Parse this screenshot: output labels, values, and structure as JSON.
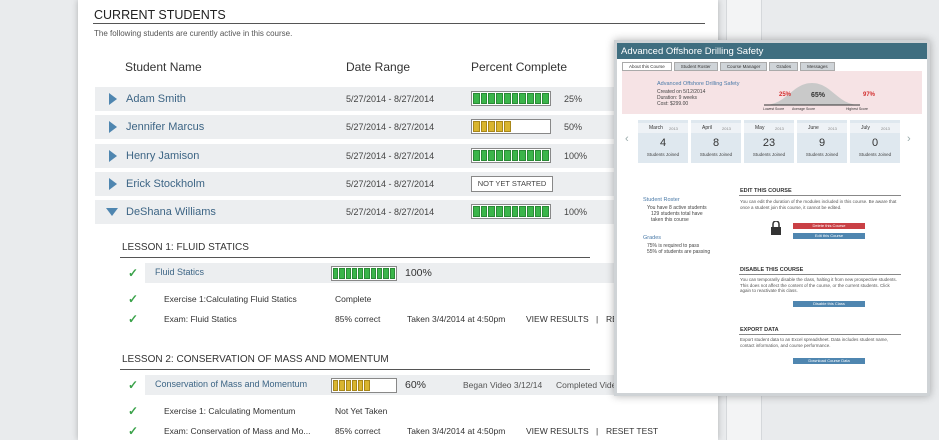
{
  "main": {
    "title": "CURRENT STUDENTS",
    "subtitle": "The following students are curently active in this course.",
    "columns": [
      "Student Name",
      "Date Range",
      "Percent Complete"
    ],
    "students": [
      {
        "name": "Adam Smith",
        "dates": "5/27/2014 - 8/27/2014",
        "progress": "25%"
      },
      {
        "name": "Jennifer Marcus",
        "dates": "5/27/2014 - 8/27/2014",
        "progress": "50%"
      },
      {
        "name": "Henry Jamison",
        "dates": "5/27/2014 - 8/27/2014",
        "progress": "100%"
      },
      {
        "name": "Erick Stockholm",
        "dates": "5/27/2014 - 8/27/2014",
        "progress": "NOT YET STARTED"
      },
      {
        "name": "DeShana Williams",
        "dates": "5/27/2014 - 8/27/2014",
        "progress": "100%"
      }
    ],
    "lessons": [
      {
        "title": "LESSON 1: FLUID STATICS",
        "module": "Fluid Statics",
        "progress": "100%",
        "status": [],
        "items": [
          [
            "Exercise 1:Calculating Fluid Statics",
            "Complete"
          ],
          [
            "Exam: Fluid Statics",
            "85% correct",
            "Taken 3/4/2014 at 4:50pm",
            "VIEW RESULTS",
            "|",
            "RESET TEST"
          ]
        ]
      },
      {
        "title": "LESSON 2: CONSERVATION OF MASS AND MOMENTUM",
        "module": "Conservation of Mass and Momentum",
        "progress": "60%",
        "status": [
          "Began Video 3/12/14",
          "Completed Video"
        ],
        "items": [
          [
            "Exercise 1: Calculating Momentum",
            "Not Yet Taken"
          ],
          [
            "Exam: Conservation of Mass and Mo...",
            "85% correct",
            "Taken 3/4/2014 at 4:50pm",
            "VIEW RESULTS",
            "|",
            "RESET TEST"
          ]
        ]
      }
    ]
  },
  "panel": {
    "title": "Advanced Offshore Drilling Safety",
    "tabs": [
      "About this Course",
      "Student Roster",
      "Course Manager",
      "Grades",
      "Messages"
    ],
    "course": {
      "name": "Advanced Offshore Drilling Safety",
      "details": [
        "Created on 5/12/2014",
        "Duration: 9 weeks",
        "Cost: $299.00"
      ]
    },
    "scores": [
      {
        "value": "25%",
        "label": "Lowest Score"
      },
      {
        "value": "65%",
        "label": "Average Score"
      },
      {
        "value": "97%",
        "label": "Highest Score"
      }
    ],
    "months": [
      {
        "month": "March",
        "year": "2013",
        "count": "4",
        "label": "Students Joined"
      },
      {
        "month": "April",
        "year": "2013",
        "count": "8",
        "label": "Students Joined"
      },
      {
        "month": "May",
        "year": "2013",
        "count": "23",
        "label": "Students Joined"
      },
      {
        "month": "June",
        "year": "2013",
        "count": "9",
        "label": "Students Joined"
      },
      {
        "month": "July",
        "year": "2013",
        "count": "0",
        "label": "Students Joined"
      }
    ],
    "roster": {
      "title": "Student Roster",
      "lines": [
        "You have 8 active students",
        "129 students total have",
        "taken this course"
      ]
    },
    "grades": {
      "title": "Grades",
      "lines": [
        "75% is required to pass",
        "55% of students are passing"
      ]
    },
    "edit": {
      "title": "EDIT THIS COURSE",
      "text": "You can edit the duration of the modules included in this course. Be aware that once a student join this course, it cannot be edited.",
      "buttons": [
        "Delete this Course",
        "Edit this Course"
      ]
    },
    "disable": {
      "title": "DISABLE THIS COURSE",
      "text": "You can temporarily disable the class, halting it from new prospective students. This does not affect the content of the course, or the current students. Click again to reactivate this class.",
      "button": "Disable this Class"
    },
    "export": {
      "title": "EXPORT DATA",
      "text": "Export student data to an Excel spreadsheet. Data includes student name, contact information, and course performance.",
      "button": "Download Course Data"
    }
  }
}
